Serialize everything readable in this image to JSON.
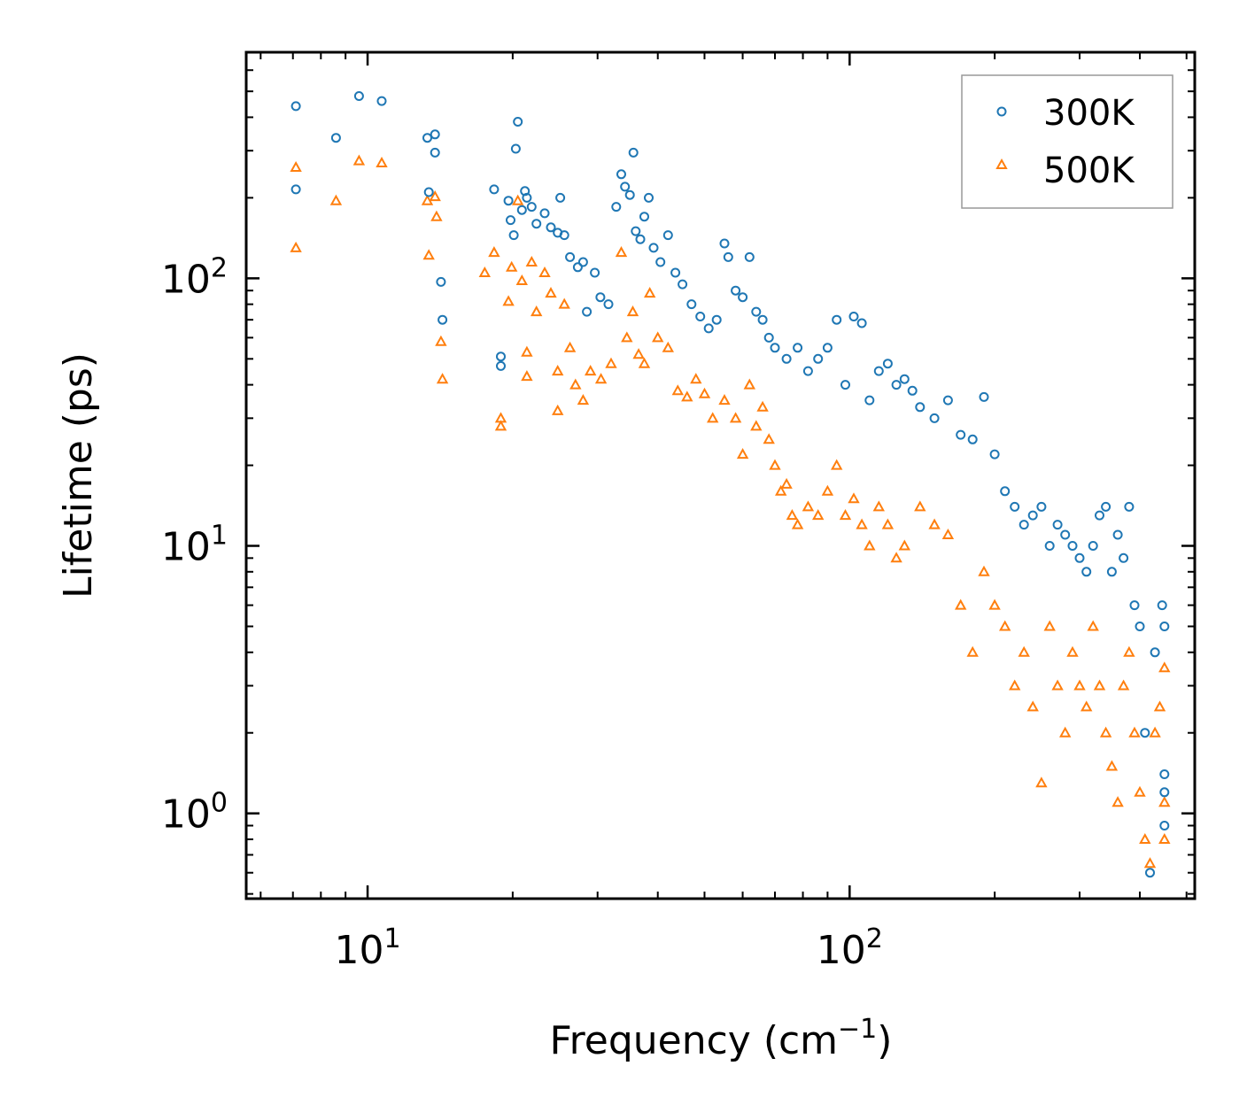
{
  "chart_data": {
    "type": "scatter",
    "title": "",
    "xlabel": "Frequency (cm",
    "xlabel_sup": "−1",
    "xlabel_close": ")",
    "ylabel": "Lifetime (ps)",
    "xscale": "log",
    "yscale": "log",
    "xlim": [
      5.6,
      520
    ],
    "ylim": [
      0.48,
      700
    ],
    "x_ticks": [
      {
        "value": 10,
        "base": "10",
        "exp": "1"
      },
      {
        "value": 100,
        "base": "10",
        "exp": "2"
      }
    ],
    "y_ticks": [
      {
        "value": 1,
        "base": "10",
        "exp": "0"
      },
      {
        "value": 10,
        "base": "10",
        "exp": "1"
      },
      {
        "value": 100,
        "base": "10",
        "exp": "2"
      }
    ],
    "legend_position": "top-right",
    "series": [
      {
        "name": "300K",
        "marker": "circle",
        "color": "#1f77b4",
        "points": [
          [
            7.1,
            440
          ],
          [
            7.1,
            215
          ],
          [
            8.6,
            335
          ],
          [
            9.6,
            480
          ],
          [
            10.7,
            460
          ],
          [
            13.3,
            335
          ],
          [
            13.4,
            210
          ],
          [
            13.8,
            345
          ],
          [
            13.8,
            295
          ],
          [
            14.2,
            97
          ],
          [
            14.3,
            70
          ],
          [
            18.3,
            215
          ],
          [
            18.9,
            51
          ],
          [
            18.9,
            47
          ],
          [
            19.6,
            195
          ],
          [
            19.8,
            165
          ],
          [
            20.1,
            145
          ],
          [
            20.5,
            385
          ],
          [
            20.3,
            305
          ],
          [
            20.9,
            180
          ],
          [
            21.2,
            212
          ],
          [
            21.4,
            200
          ],
          [
            21.9,
            185
          ],
          [
            22.4,
            160
          ],
          [
            23.3,
            175
          ],
          [
            24.0,
            155
          ],
          [
            24.8,
            148
          ],
          [
            25.1,
            200
          ],
          [
            25.6,
            145
          ],
          [
            26.3,
            120
          ],
          [
            27.3,
            110
          ],
          [
            28.0,
            115
          ],
          [
            28.5,
            75
          ],
          [
            29.6,
            105
          ],
          [
            30.4,
            85
          ],
          [
            31.6,
            80
          ],
          [
            32.8,
            185
          ],
          [
            33.6,
            245
          ],
          [
            34.2,
            220
          ],
          [
            35.0,
            205
          ],
          [
            35.6,
            295
          ],
          [
            36.0,
            150
          ],
          [
            36.8,
            140
          ],
          [
            37.5,
            170
          ],
          [
            38.3,
            200
          ],
          [
            39.2,
            130
          ],
          [
            40.5,
            115
          ],
          [
            42.0,
            145
          ],
          [
            43.5,
            105
          ],
          [
            45.0,
            95
          ],
          [
            47.0,
            80
          ],
          [
            49.0,
            72
          ],
          [
            51.0,
            65
          ],
          [
            53.0,
            70
          ],
          [
            55.0,
            135
          ],
          [
            56.0,
            120
          ],
          [
            58.0,
            90
          ],
          [
            60.0,
            85
          ],
          [
            62.0,
            120
          ],
          [
            64.0,
            75
          ],
          [
            66.0,
            70
          ],
          [
            68.0,
            60
          ],
          [
            70.0,
            55
          ],
          [
            74.0,
            50
          ],
          [
            78.0,
            55
          ],
          [
            82.0,
            45
          ],
          [
            86.0,
            50
          ],
          [
            90.0,
            55
          ],
          [
            94.0,
            70
          ],
          [
            98.0,
            40
          ],
          [
            102.0,
            72
          ],
          [
            106.0,
            68
          ],
          [
            110.0,
            35
          ],
          [
            115.0,
            45
          ],
          [
            120.0,
            48
          ],
          [
            125.0,
            40
          ],
          [
            130.0,
            42
          ],
          [
            135.0,
            38
          ],
          [
            140.0,
            33
          ],
          [
            150.0,
            30
          ],
          [
            160.0,
            35
          ],
          [
            170.0,
            26
          ],
          [
            180.0,
            25
          ],
          [
            190.0,
            36
          ],
          [
            200.0,
            22
          ],
          [
            210.0,
            16
          ],
          [
            220.0,
            14
          ],
          [
            230.0,
            12
          ],
          [
            240.0,
            13
          ],
          [
            250.0,
            14
          ],
          [
            260.0,
            10
          ],
          [
            270.0,
            12
          ],
          [
            280.0,
            11
          ],
          [
            290.0,
            10
          ],
          [
            300.0,
            9
          ],
          [
            310.0,
            8
          ],
          [
            320.0,
            10
          ],
          [
            330.0,
            13
          ],
          [
            340.0,
            14
          ],
          [
            350.0,
            8
          ],
          [
            360.0,
            11
          ],
          [
            370.0,
            9
          ],
          [
            380.0,
            14
          ],
          [
            390.0,
            6
          ],
          [
            400.0,
            5
          ],
          [
            410.0,
            2
          ],
          [
            420.0,
            0.6
          ],
          [
            430.0,
            4
          ],
          [
            445.0,
            6
          ],
          [
            450.0,
            5
          ],
          [
            450.0,
            1.4
          ],
          [
            450.0,
            0.9
          ],
          [
            450.0,
            1.2
          ]
        ]
      },
      {
        "name": "500K",
        "marker": "triangle",
        "color": "#ff7f0e",
        "points": [
          [
            7.1,
            260
          ],
          [
            7.1,
            130
          ],
          [
            8.6,
            195
          ],
          [
            9.6,
            275
          ],
          [
            10.7,
            270
          ],
          [
            13.3,
            195
          ],
          [
            13.4,
            122
          ],
          [
            13.8,
            202
          ],
          [
            13.9,
            170
          ],
          [
            14.2,
            58
          ],
          [
            14.3,
            42
          ],
          [
            17.5,
            105
          ],
          [
            18.3,
            125
          ],
          [
            18.9,
            30
          ],
          [
            18.9,
            28
          ],
          [
            19.6,
            82
          ],
          [
            19.9,
            110
          ],
          [
            20.5,
            195
          ],
          [
            20.9,
            98
          ],
          [
            21.4,
            53
          ],
          [
            21.4,
            43
          ],
          [
            21.9,
            115
          ],
          [
            22.4,
            75
          ],
          [
            23.3,
            105
          ],
          [
            24.0,
            88
          ],
          [
            24.8,
            45
          ],
          [
            24.8,
            32
          ],
          [
            25.6,
            80
          ],
          [
            26.3,
            55
          ],
          [
            27.0,
            40
          ],
          [
            28.0,
            35
          ],
          [
            29.0,
            45
          ],
          [
            30.5,
            42
          ],
          [
            32.0,
            48
          ],
          [
            33.6,
            125
          ],
          [
            34.5,
            60
          ],
          [
            35.5,
            75
          ],
          [
            36.5,
            52
          ],
          [
            37.5,
            48
          ],
          [
            38.5,
            88
          ],
          [
            40.0,
            60
          ],
          [
            42.0,
            55
          ],
          [
            44.0,
            38
          ],
          [
            46.0,
            36
          ],
          [
            48.0,
            42
          ],
          [
            50.0,
            37
          ],
          [
            52.0,
            30
          ],
          [
            55.0,
            35
          ],
          [
            58.0,
            30
          ],
          [
            60.0,
            22
          ],
          [
            62.0,
            40
          ],
          [
            64.0,
            28
          ],
          [
            66.0,
            33
          ],
          [
            68.0,
            25
          ],
          [
            70.0,
            20
          ],
          [
            72.0,
            16
          ],
          [
            74.0,
            17
          ],
          [
            76.0,
            13
          ],
          [
            78.0,
            12
          ],
          [
            82.0,
            14
          ],
          [
            86.0,
            13
          ],
          [
            90.0,
            16
          ],
          [
            94.0,
            20
          ],
          [
            98.0,
            13
          ],
          [
            102.0,
            15
          ],
          [
            106.0,
            12
          ],
          [
            110.0,
            10
          ],
          [
            115.0,
            14
          ],
          [
            120.0,
            12
          ],
          [
            125.0,
            9
          ],
          [
            130.0,
            10
          ],
          [
            140.0,
            14
          ],
          [
            150.0,
            12
          ],
          [
            160.0,
            11
          ],
          [
            170.0,
            6
          ],
          [
            180.0,
            4
          ],
          [
            190.0,
            8
          ],
          [
            200.0,
            6
          ],
          [
            210.0,
            5
          ],
          [
            220.0,
            3
          ],
          [
            230.0,
            4
          ],
          [
            240.0,
            2.5
          ],
          [
            250.0,
            1.3
          ],
          [
            260.0,
            5
          ],
          [
            270.0,
            3
          ],
          [
            280.0,
            2
          ],
          [
            290.0,
            4
          ],
          [
            300.0,
            3
          ],
          [
            310.0,
            2.5
          ],
          [
            320.0,
            5
          ],
          [
            330.0,
            3
          ],
          [
            340.0,
            2
          ],
          [
            350.0,
            1.5
          ],
          [
            360.0,
            1.1
          ],
          [
            370.0,
            3
          ],
          [
            380.0,
            4
          ],
          [
            390.0,
            2
          ],
          [
            400.0,
            1.2
          ],
          [
            410.0,
            0.8
          ],
          [
            420.0,
            0.65
          ],
          [
            430.0,
            2
          ],
          [
            440.0,
            2.5
          ],
          [
            450.0,
            3.5
          ],
          [
            450.0,
            1.1
          ],
          [
            450.0,
            0.8
          ]
        ]
      }
    ]
  }
}
